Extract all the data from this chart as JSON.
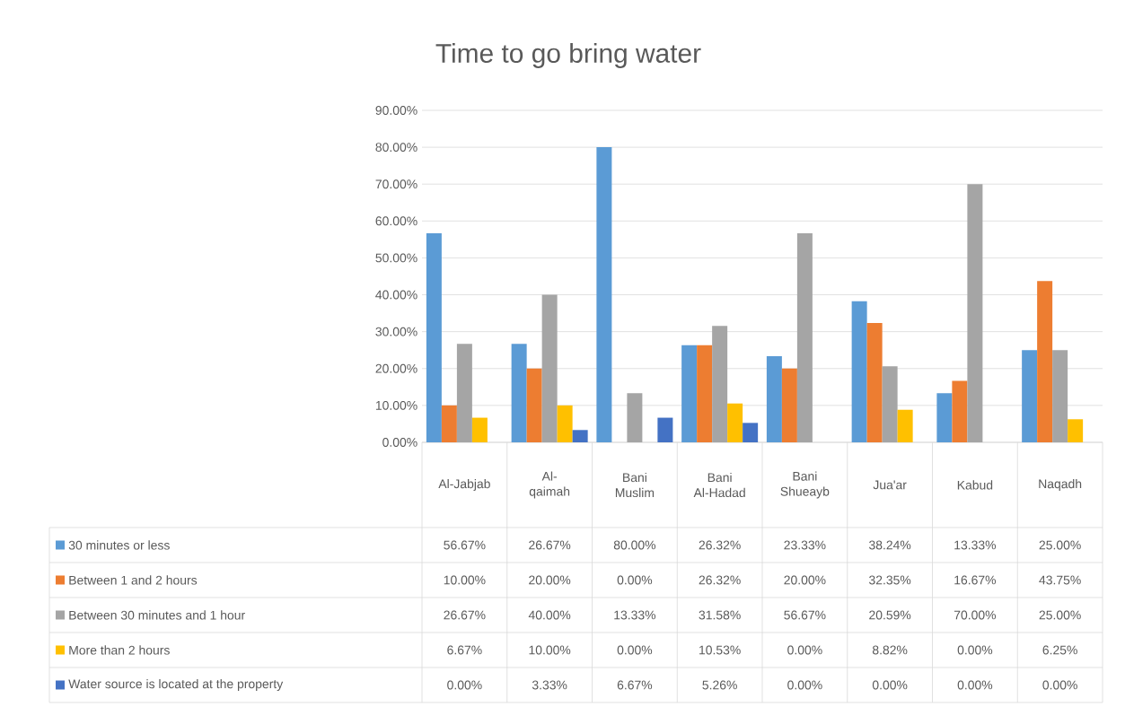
{
  "chart_data": {
    "type": "bar",
    "title": "Time to go bring water",
    "categories": [
      "Al-Jabjab",
      "Al-qaimah",
      "Bani Muslim",
      "Bani Al-Hadad",
      "Bani Shueayb",
      "Jua'ar",
      "Kabud",
      "Naqadh"
    ],
    "series": [
      {
        "name": "30 minutes or less",
        "color": "#5b9bd5",
        "values": [
          56.67,
          26.67,
          80.0,
          26.32,
          23.33,
          38.24,
          13.33,
          25.0
        ],
        "value_labels": [
          "56.67%",
          "26.67%",
          "80.00%",
          "26.32%",
          "23.33%",
          "38.24%",
          "13.33%",
          "25.00%"
        ]
      },
      {
        "name": "Between 1  and 2 hours",
        "color": "#ed7d31",
        "values": [
          10.0,
          20.0,
          0.0,
          26.32,
          20.0,
          32.35,
          16.67,
          43.75
        ],
        "value_labels": [
          "10.00%",
          "20.00%",
          "0.00%",
          "26.32%",
          "20.00%",
          "32.35%",
          "16.67%",
          "43.75%"
        ]
      },
      {
        "name": "Between 30 minutes and 1 hour",
        "color": "#a5a5a5",
        "values": [
          26.67,
          40.0,
          13.33,
          31.58,
          56.67,
          20.59,
          70.0,
          25.0
        ],
        "value_labels": [
          "26.67%",
          "40.00%",
          "13.33%",
          "31.58%",
          "56.67%",
          "20.59%",
          "70.00%",
          "25.00%"
        ]
      },
      {
        "name": "More than 2 hours",
        "color": "#ffc000",
        "values": [
          6.67,
          10.0,
          0.0,
          10.53,
          0.0,
          8.82,
          0.0,
          6.25
        ],
        "value_labels": [
          "6.67%",
          "10.00%",
          "0.00%",
          "10.53%",
          "0.00%",
          "8.82%",
          "0.00%",
          "6.25%"
        ]
      },
      {
        "name": "Water source is located at the property",
        "color": "#4472c4",
        "values": [
          0.0,
          3.33,
          6.67,
          5.26,
          0.0,
          0.0,
          0.0,
          0.0
        ],
        "value_labels": [
          "0.00%",
          "3.33%",
          "6.67%",
          "5.26%",
          "0.00%",
          "0.00%",
          "0.00%",
          "0.00%"
        ]
      }
    ],
    "ylim": [
      0,
      90
    ],
    "yticks": [
      {
        "value": 0,
        "label": "0.00%"
      },
      {
        "value": 10,
        "label": "10.00%"
      },
      {
        "value": 20,
        "label": "20.00%"
      },
      {
        "value": 30,
        "label": "30.00%"
      },
      {
        "value": 40,
        "label": "40.00%"
      },
      {
        "value": 50,
        "label": "50.00%"
      },
      {
        "value": 60,
        "label": "60.00%"
      },
      {
        "value": 70,
        "label": "70.00%"
      },
      {
        "value": 80,
        "label": "80.00%"
      },
      {
        "value": 90,
        "label": "90.00%"
      }
    ],
    "grid": "y",
    "legend": "bottom"
  }
}
